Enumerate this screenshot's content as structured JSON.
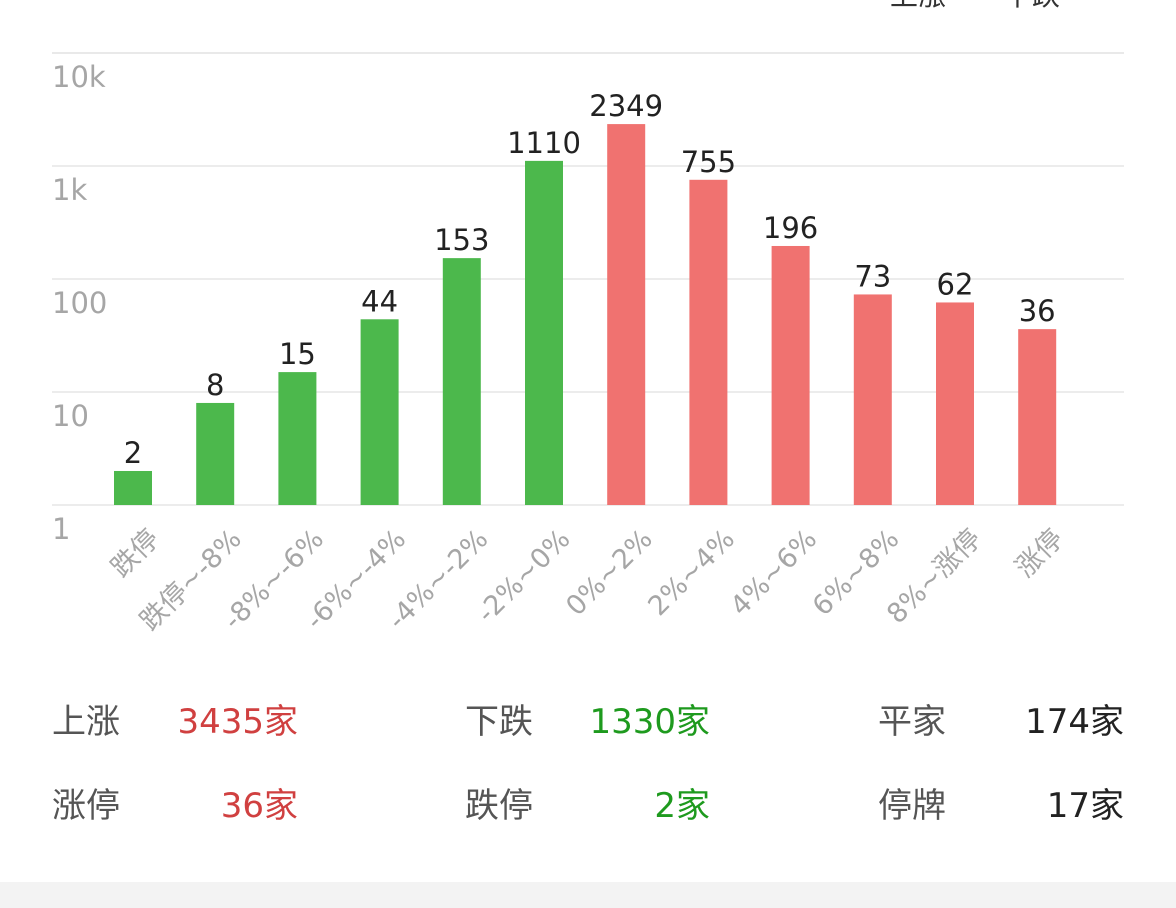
{
  "legend": [
    {
      "label": "上涨",
      "color": "#f07270"
    },
    {
      "label": "下跌",
      "color": "#4cb84c"
    }
  ],
  "chart_data": {
    "type": "bar",
    "yscale": "log",
    "ylim": [
      1,
      10000
    ],
    "yticks": [
      "1",
      "10",
      "100",
      "1k",
      "10k"
    ],
    "categories": [
      "跌停",
      "跌停~-8%",
      "-8%~-6%",
      "-6%~-4%",
      "-4%~-2%",
      "-2%~0%",
      "0%~2%",
      "2%~4%",
      "4%~6%",
      "6%~8%",
      "8%~涨停",
      "涨停"
    ],
    "values": [
      2,
      8,
      15,
      44,
      153,
      1110,
      2349,
      755,
      196,
      73,
      62,
      36
    ],
    "value_labels": [
      "2",
      "8",
      "15",
      "44",
      "153",
      "1110",
      "2349",
      "755",
      "196",
      "73",
      "62",
      "36"
    ],
    "colors": {
      "down": "#4cb84c",
      "up": "#f07270"
    },
    "up_from_index": 6,
    "grid": true
  },
  "stats": [
    [
      {
        "label": "上涨",
        "value": "3435家",
        "color": "#d04040"
      },
      {
        "label": "下跌",
        "value": "1330家",
        "color": "#1e9a1e"
      },
      {
        "label": "平家",
        "value": "174家",
        "color": "#222222"
      }
    ],
    [
      {
        "label": "涨停",
        "value": "36家",
        "color": "#d04040"
      },
      {
        "label": "跌停",
        "value": "2家",
        "color": "#1e9a1e"
      },
      {
        "label": "停牌",
        "value": "17家",
        "color": "#222222"
      }
    ]
  ]
}
